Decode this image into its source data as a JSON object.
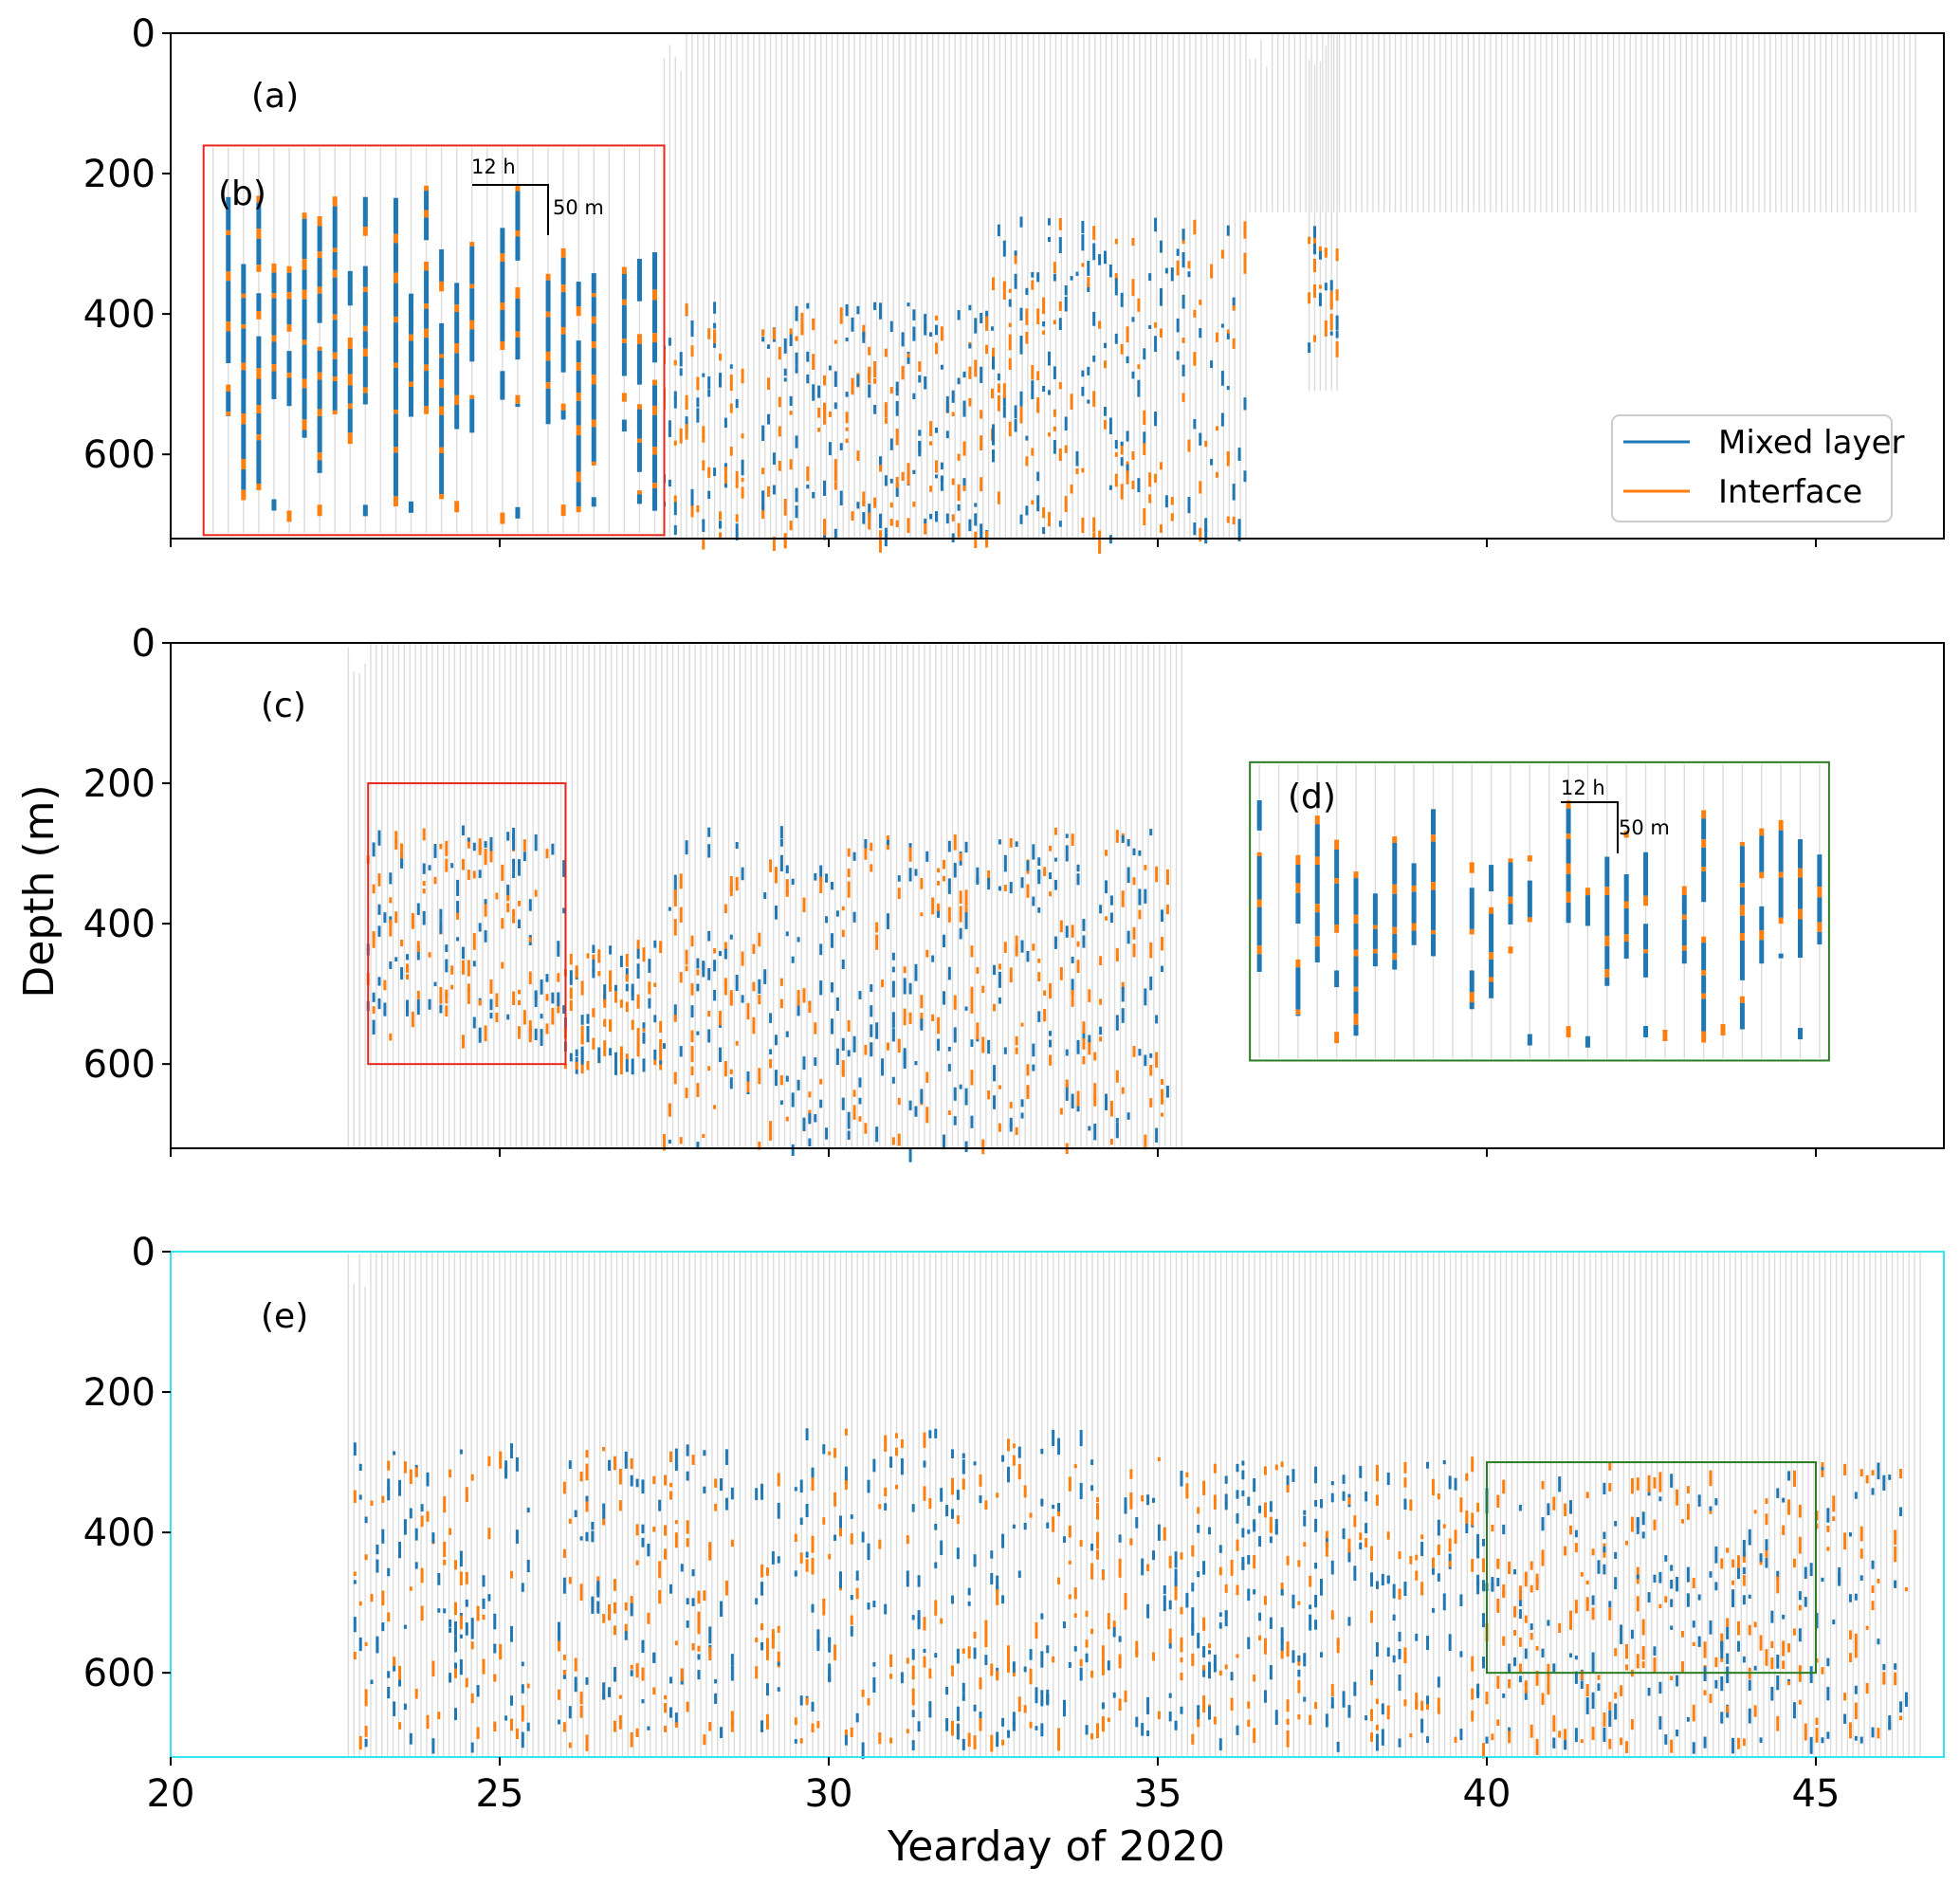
{
  "chart_data": {
    "type": "profile-timeseries",
    "xlabel": "Yearday of 2020",
    "ylabel": "Depth (m)",
    "xlim": [
      20,
      47
    ],
    "ylim": [
      720,
      0
    ],
    "xticks": [
      20,
      25,
      30,
      35,
      40,
      45
    ],
    "yticks": [
      0,
      200,
      400,
      600
    ],
    "legend": {
      "placement": "bottom-right of panel (a)",
      "entries": [
        {
          "label": "Mixed layer",
          "color": "#1f77b4"
        },
        {
          "label": "Interface",
          "color": "#ff7f0e"
        }
      ]
    },
    "profile_color": "#dcdcdc",
    "panels": [
      {
        "label": "(a)",
        "frame_color": "#000000",
        "profile_coverage": [
          {
            "start": 27.5,
            "end": 36.4,
            "top": 0,
            "bottom": 720
          },
          {
            "start": 36.4,
            "end": 46.6,
            "top": 0,
            "bottom": 255
          },
          {
            "start": 37.3,
            "end": 37.8,
            "top": 0,
            "bottom": 510
          }
        ],
        "feature_segments": [
          {
            "start": 27.5,
            "end": 28.7,
            "depth_min": 380,
            "depth_max": 720
          },
          {
            "start": 29.0,
            "end": 32.5,
            "depth_min": 380,
            "depth_max": 720
          },
          {
            "start": 32.5,
            "end": 36.4,
            "depth_min": 260,
            "depth_max": 720
          },
          {
            "start": 37.3,
            "end": 37.8,
            "depth_min": 270,
            "depth_max": 450
          }
        ],
        "insets": [
          {
            "label": "(b)",
            "x_range": [
              20.5,
              27.5
            ],
            "depth_range": [
              160,
              715
            ],
            "frame_color": "#e8281e",
            "scale_time": "12 h",
            "scale_depth": "50 m"
          }
        ]
      },
      {
        "label": "(c)",
        "frame_color": "#000000",
        "profile_coverage": [
          {
            "start": 22.7,
            "end": 35.4,
            "top": 0,
            "bottom": 720
          }
        ],
        "feature_segments": [
          {
            "start": 23.0,
            "end": 26.0,
            "depth_min": 260,
            "depth_max": 560
          },
          {
            "start": 26.0,
            "end": 27.5,
            "depth_min": 420,
            "depth_max": 600
          },
          {
            "start": 27.5,
            "end": 35.2,
            "depth_min": 260,
            "depth_max": 720
          }
        ],
        "highlight_boxes": [
          {
            "x_range": [
              23.0,
              26.0
            ],
            "depth_range": [
              200,
              600
            ],
            "color": "#e8281e"
          }
        ],
        "insets": [
          {
            "label": "(d)",
            "x_range": [
              36.4,
              45.2
            ],
            "depth_range": [
              170,
              595
            ],
            "frame_color": "#2a7d23",
            "scale_time": "12 h",
            "scale_depth": "50 m"
          }
        ]
      },
      {
        "label": "(e)",
        "frame_color": "#33e5f0",
        "profile_coverage": [
          {
            "start": 22.7,
            "end": 46.6,
            "top": 0,
            "bottom": 720
          }
        ],
        "feature_segments": [
          {
            "start": 22.8,
            "end": 25.5,
            "depth_min": 270,
            "depth_max": 700
          },
          {
            "start": 25.9,
            "end": 28.6,
            "depth_min": 270,
            "depth_max": 700
          },
          {
            "start": 28.9,
            "end": 29.3,
            "depth_min": 280,
            "depth_max": 700
          },
          {
            "start": 29.5,
            "end": 34.0,
            "depth_min": 250,
            "depth_max": 700
          },
          {
            "start": 34.0,
            "end": 40.0,
            "depth_min": 290,
            "depth_max": 700
          },
          {
            "start": 40.0,
            "end": 46.4,
            "depth_min": 300,
            "depth_max": 700
          }
        ],
        "highlight_boxes": [
          {
            "x_range": [
              40.0,
              45.0
            ],
            "depth_range": [
              300,
              600
            ],
            "color": "#2a7d23"
          }
        ],
        "insets": []
      }
    ]
  }
}
